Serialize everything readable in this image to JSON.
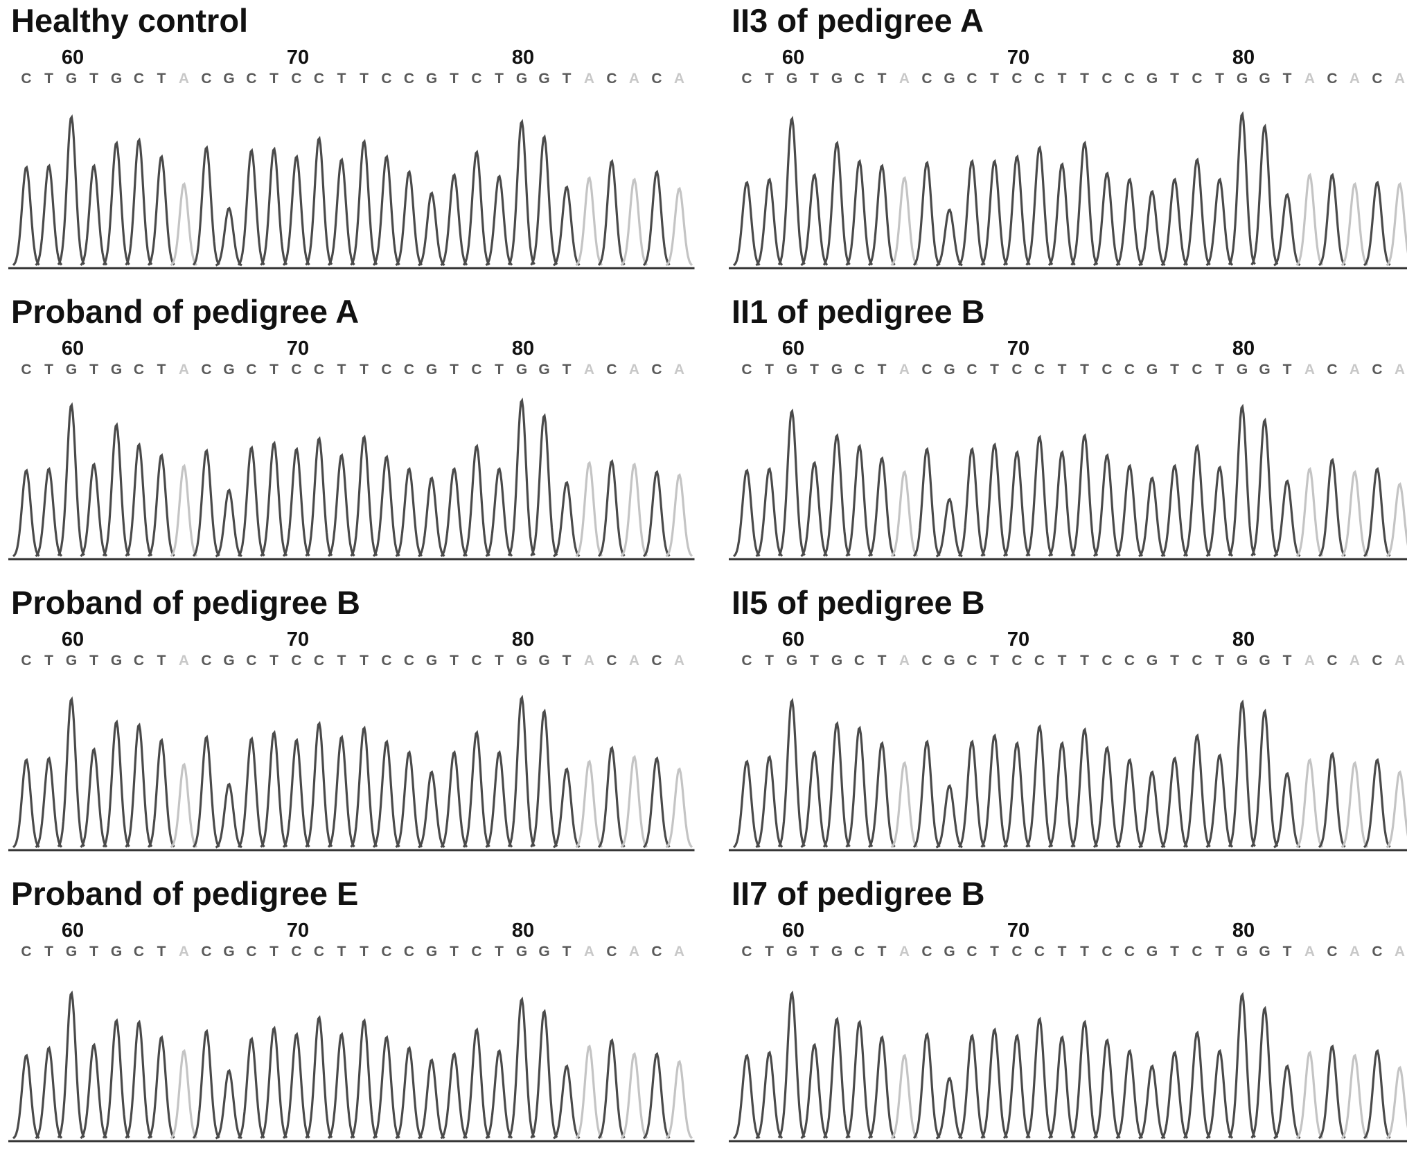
{
  "chart_data": [
    {
      "type": "line",
      "title": "Healthy control",
      "sequence": [
        "C",
        "T",
        "G",
        "T",
        "G",
        "C",
        "T",
        "A",
        "C",
        "G",
        "C",
        "T",
        "C",
        "C",
        "T",
        "T",
        "C",
        "C",
        "G",
        "T",
        "C",
        "T",
        "G",
        "G",
        "T",
        "A",
        "C",
        "A",
        "C",
        "A"
      ],
      "tick_labels": [
        "60",
        "70",
        "80"
      ],
      "tick_positions": [
        60,
        70,
        80
      ],
      "x": [
        58,
        59,
        60,
        61,
        62,
        63,
        64,
        65,
        66,
        67,
        68,
        69,
        70,
        71,
        72,
        73,
        74,
        75,
        76,
        77,
        78,
        79,
        80,
        81,
        82,
        83,
        84,
        85,
        86,
        87
      ],
      "peak_heights": [
        0.65,
        0.66,
        0.98,
        0.66,
        0.81,
        0.83,
        0.72,
        0.54,
        0.78,
        0.38,
        0.76,
        0.77,
        0.72,
        0.84,
        0.7,
        0.82,
        0.72,
        0.62,
        0.48,
        0.6,
        0.75,
        0.59,
        0.95,
        0.85,
        0.52,
        0.58,
        0.69,
        0.57,
        0.62,
        0.51
      ]
    },
    {
      "type": "line",
      "title": "II3 of pedigree A",
      "sequence": [
        "C",
        "T",
        "G",
        "T",
        "G",
        "C",
        "T",
        "A",
        "C",
        "G",
        "C",
        "T",
        "C",
        "C",
        "T",
        "T",
        "C",
        "C",
        "G",
        "T",
        "C",
        "T",
        "G",
        "G",
        "T",
        "A",
        "C",
        "A",
        "C",
        "A"
      ],
      "tick_labels": [
        "60",
        "70",
        "80"
      ],
      "tick_positions": [
        60,
        70,
        80
      ],
      "x": [
        58,
        59,
        60,
        61,
        62,
        63,
        64,
        65,
        66,
        67,
        68,
        69,
        70,
        71,
        72,
        73,
        74,
        75,
        76,
        77,
        78,
        79,
        80,
        81,
        82,
        83,
        84,
        85,
        86,
        87
      ],
      "peak_heights": [
        0.55,
        0.57,
        0.97,
        0.6,
        0.81,
        0.69,
        0.66,
        0.58,
        0.68,
        0.37,
        0.69,
        0.69,
        0.72,
        0.78,
        0.67,
        0.81,
        0.61,
        0.57,
        0.49,
        0.57,
        0.7,
        0.57,
        1.0,
        0.92,
        0.47,
        0.6,
        0.6,
        0.54,
        0.55,
        0.54
      ]
    },
    {
      "type": "line",
      "title": "Proband of pedigree A",
      "sequence": [
        "C",
        "T",
        "G",
        "T",
        "G",
        "C",
        "T",
        "A",
        "C",
        "G",
        "C",
        "T",
        "C",
        "C",
        "T",
        "T",
        "C",
        "C",
        "G",
        "T",
        "C",
        "T",
        "G",
        "G",
        "T",
        "A",
        "C",
        "A",
        "C",
        "A"
      ],
      "tick_labels": [
        "60",
        "70",
        "80"
      ],
      "tick_positions": [
        60,
        70,
        80
      ],
      "x": [
        58,
        59,
        60,
        61,
        62,
        63,
        64,
        65,
        66,
        67,
        68,
        69,
        70,
        71,
        72,
        73,
        74,
        75,
        76,
        77,
        78,
        79,
        80,
        81,
        82,
        83,
        84,
        85,
        86,
        87
      ],
      "peak_heights": [
        0.57,
        0.58,
        1.0,
        0.61,
        0.87,
        0.74,
        0.67,
        0.6,
        0.7,
        0.44,
        0.72,
        0.75,
        0.71,
        0.78,
        0.67,
        0.79,
        0.66,
        0.58,
        0.52,
        0.58,
        0.73,
        0.58,
        1.03,
        0.93,
        0.49,
        0.62,
        0.63,
        0.61,
        0.56,
        0.54
      ]
    },
    {
      "type": "line",
      "title": "II1 of pedigree B",
      "sequence": [
        "C",
        "T",
        "G",
        "T",
        "G",
        "C",
        "T",
        "A",
        "C",
        "G",
        "C",
        "T",
        "C",
        "C",
        "T",
        "T",
        "C",
        "C",
        "G",
        "T",
        "C",
        "T",
        "G",
        "G",
        "T",
        "A",
        "C",
        "A",
        "C",
        "A"
      ],
      "tick_labels": [
        "60",
        "70",
        "80"
      ],
      "tick_positions": [
        60,
        70,
        80
      ],
      "x": [
        58,
        59,
        60,
        61,
        62,
        63,
        64,
        65,
        66,
        67,
        68,
        69,
        70,
        71,
        72,
        73,
        74,
        75,
        76,
        77,
        78,
        79,
        80,
        81,
        82,
        83,
        84,
        85,
        86,
        87
      ],
      "peak_heights": [
        0.57,
        0.58,
        0.96,
        0.62,
        0.8,
        0.73,
        0.65,
        0.56,
        0.71,
        0.38,
        0.71,
        0.74,
        0.69,
        0.79,
        0.69,
        0.8,
        0.67,
        0.6,
        0.52,
        0.6,
        0.73,
        0.59,
        0.99,
        0.9,
        0.5,
        0.58,
        0.64,
        0.56,
        0.58,
        0.48
      ]
    },
    {
      "type": "line",
      "title": "Proband of pedigree B",
      "sequence": [
        "C",
        "T",
        "G",
        "T",
        "G",
        "C",
        "T",
        "A",
        "C",
        "G",
        "C",
        "T",
        "C",
        "C",
        "T",
        "T",
        "C",
        "C",
        "G",
        "T",
        "C",
        "T",
        "G",
        "G",
        "T",
        "A",
        "C",
        "A",
        "C",
        "A"
      ],
      "tick_labels": [
        "60",
        "70",
        "80"
      ],
      "tick_positions": [
        60,
        70,
        80
      ],
      "x": [
        58,
        59,
        60,
        61,
        62,
        63,
        64,
        65,
        66,
        67,
        68,
        69,
        70,
        71,
        72,
        73,
        74,
        75,
        76,
        77,
        78,
        79,
        80,
        81,
        82,
        83,
        84,
        85,
        86,
        87
      ],
      "peak_heights": [
        0.58,
        0.59,
        0.98,
        0.65,
        0.83,
        0.81,
        0.71,
        0.55,
        0.73,
        0.42,
        0.72,
        0.76,
        0.71,
        0.82,
        0.73,
        0.79,
        0.7,
        0.63,
        0.5,
        0.63,
        0.76,
        0.63,
        0.99,
        0.9,
        0.52,
        0.57,
        0.66,
        0.6,
        0.59,
        0.52
      ]
    },
    {
      "type": "line",
      "title": "II5 of pedigree B",
      "sequence": [
        "C",
        "T",
        "G",
        "T",
        "G",
        "C",
        "T",
        "A",
        "C",
        "G",
        "C",
        "T",
        "C",
        "C",
        "T",
        "T",
        "C",
        "C",
        "G",
        "T",
        "C",
        "T",
        "G",
        "G",
        "T",
        "A",
        "C",
        "A",
        "C",
        "A"
      ],
      "tick_labels": [
        "60",
        "70",
        "80"
      ],
      "tick_positions": [
        60,
        70,
        80
      ],
      "x": [
        58,
        59,
        60,
        61,
        62,
        63,
        64,
        65,
        66,
        67,
        68,
        69,
        70,
        71,
        72,
        73,
        74,
        75,
        76,
        77,
        78,
        79,
        80,
        81,
        82,
        83,
        84,
        85,
        86,
        87
      ],
      "peak_heights": [
        0.57,
        0.6,
        0.97,
        0.63,
        0.82,
        0.79,
        0.69,
        0.56,
        0.7,
        0.41,
        0.7,
        0.74,
        0.69,
        0.8,
        0.69,
        0.78,
        0.66,
        0.58,
        0.5,
        0.59,
        0.74,
        0.61,
        0.96,
        0.9,
        0.49,
        0.58,
        0.62,
        0.56,
        0.58,
        0.5
      ]
    },
    {
      "type": "line",
      "title": "Proband of pedigree E",
      "sequence": [
        "C",
        "T",
        "G",
        "T",
        "G",
        "C",
        "T",
        "A",
        "C",
        "G",
        "C",
        "T",
        "C",
        "C",
        "T",
        "T",
        "C",
        "C",
        "G",
        "T",
        "C",
        "T",
        "G",
        "G",
        "T",
        "A",
        "C",
        "A",
        "C",
        "A"
      ],
      "tick_labels": [
        "60",
        "70",
        "80"
      ],
      "tick_positions": [
        60,
        70,
        80
      ],
      "x": [
        58,
        59,
        60,
        61,
        62,
        63,
        64,
        65,
        66,
        67,
        68,
        69,
        70,
        71,
        72,
        73,
        74,
        75,
        76,
        77,
        78,
        79,
        80,
        81,
        82,
        83,
        84,
        85,
        86,
        87
      ],
      "peak_heights": [
        0.55,
        0.6,
        0.96,
        0.62,
        0.78,
        0.77,
        0.67,
        0.58,
        0.71,
        0.45,
        0.66,
        0.73,
        0.69,
        0.8,
        0.69,
        0.78,
        0.67,
        0.6,
        0.52,
        0.56,
        0.72,
        0.58,
        0.92,
        0.84,
        0.48,
        0.61,
        0.65,
        0.56,
        0.56,
        0.51
      ]
    },
    {
      "type": "line",
      "title": "II7 of pedigree B",
      "sequence": [
        "C",
        "T",
        "G",
        "T",
        "G",
        "C",
        "T",
        "A",
        "C",
        "G",
        "C",
        "T",
        "C",
        "C",
        "T",
        "T",
        "C",
        "C",
        "G",
        "T",
        "C",
        "T",
        "G",
        "G",
        "T",
        "A",
        "C",
        "A",
        "C",
        "A"
      ],
      "tick_labels": [
        "60",
        "70",
        "80"
      ],
      "tick_positions": [
        60,
        70,
        80
      ],
      "x": [
        58,
        59,
        60,
        61,
        62,
        63,
        64,
        65,
        66,
        67,
        68,
        69,
        70,
        71,
        72,
        73,
        74,
        75,
        76,
        77,
        78,
        79,
        80,
        81,
        82,
        83,
        84,
        85,
        86,
        87
      ],
      "peak_heights": [
        0.55,
        0.57,
        0.96,
        0.62,
        0.79,
        0.77,
        0.67,
        0.55,
        0.69,
        0.4,
        0.68,
        0.72,
        0.68,
        0.79,
        0.67,
        0.77,
        0.65,
        0.58,
        0.48,
        0.57,
        0.7,
        0.58,
        0.95,
        0.86,
        0.48,
        0.57,
        0.61,
        0.55,
        0.58,
        0.47
      ]
    }
  ],
  "colors": {
    "trace": "#4a4a4a",
    "trace_faint": "#c4c4c4",
    "base_text": "#5a5a5a",
    "base_text_faint": "#c8c8c8",
    "title": "#111111"
  }
}
